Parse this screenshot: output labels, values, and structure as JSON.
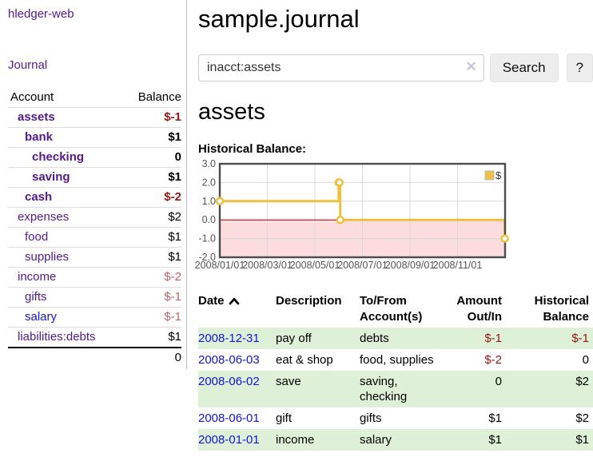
{
  "app": {
    "title": "hledger-web"
  },
  "colors": {
    "accent_purple": "#551a8b",
    "link_blue": "#1414d8",
    "negative_strong": "#9a1616",
    "negative_muted": "#bd6468",
    "stripe_green": "#dff0d8",
    "chart_text_gray": "#545454"
  },
  "sidebar": {
    "journal_link": "Journal",
    "table": {
      "headers": {
        "account": "Account",
        "balance": "Balance"
      },
      "accounts": [
        {
          "name": "assets",
          "indent": 1,
          "bold": true,
          "balance": "$-1",
          "neg": "strong"
        },
        {
          "name": "bank",
          "indent": 2,
          "bold": true,
          "balance": "$1"
        },
        {
          "name": "checking",
          "indent": 3,
          "bold": true,
          "balance": "0"
        },
        {
          "name": "saving",
          "indent": 3,
          "bold": true,
          "balance": "$1"
        },
        {
          "name": "cash",
          "indent": 2,
          "bold": true,
          "balance": "$-2",
          "neg": "strong"
        },
        {
          "name": "expenses",
          "indent": 1,
          "bold": false,
          "balance": "$2"
        },
        {
          "name": "food",
          "indent": 2,
          "bold": false,
          "balance": "$1"
        },
        {
          "name": "supplies",
          "indent": 2,
          "bold": false,
          "balance": "$1"
        },
        {
          "name": "income",
          "indent": 1,
          "bold": false,
          "balance": "$-2",
          "neg": "muted"
        },
        {
          "name": "gifts",
          "indent": 2,
          "bold": false,
          "balance": "$-1",
          "neg": "muted"
        },
        {
          "name": "salary",
          "indent": 2,
          "bold": false,
          "balance": "$-1",
          "neg": "muted",
          "link_color": "#1414d8"
        },
        {
          "name": "liabilities:debts",
          "indent": 1,
          "bold": false,
          "balance": "$1"
        }
      ],
      "total": "0"
    }
  },
  "header": {
    "title": "sample.journal"
  },
  "search": {
    "value": "inacct:assets",
    "clear_icon": "✕",
    "button": "Search",
    "help_button": "?"
  },
  "account_page": {
    "heading": "assets",
    "chart_label": "Historical Balance:"
  },
  "chart_data": {
    "type": "line",
    "step": true,
    "title": "Historical Balance",
    "series": [
      {
        "name": "$",
        "color": "#edc240",
        "points": [
          [
            "2008-01-01",
            1
          ],
          [
            "2008-06-01",
            2
          ],
          [
            "2008-06-02",
            2
          ],
          [
            "2008-06-03",
            0
          ],
          [
            "2008-12-31",
            -1
          ]
        ]
      }
    ],
    "xlim": [
      "2008-01-01",
      "2008-12-31"
    ],
    "ylim": [
      -2,
      3
    ],
    "x_tick_labels": [
      "2008/01/01",
      "2008/03/01",
      "2008/05/01",
      "2008/07/01",
      "2008/09/01",
      "2008/11/01"
    ],
    "y_tick_labels": [
      "3.0",
      "2.0",
      "1.0",
      "0.0",
      "-1.0",
      "-2.0"
    ],
    "grid": true,
    "legend_position": "top-right",
    "legend": {
      "label": "$",
      "swatch_color": "#edc240"
    },
    "negative_region_color": "#fcdcdc",
    "zero_line_color": "#8b0000",
    "gridline_color": "#d9d9d9",
    "border_color": "#4d4d4d"
  },
  "register_table": {
    "columns": [
      "Date",
      "Description",
      "To/From Account(s)",
      "Amount Out/In",
      "Historical Balance"
    ],
    "sort": {
      "column": "Date",
      "direction": "ascending"
    },
    "rows": [
      {
        "date": "2008-12-31",
        "description": "pay off",
        "accounts": "debts",
        "amount": "$-1",
        "amount_neg": true,
        "balance": "$-1",
        "balance_neg": true
      },
      {
        "date": "2008-06-03",
        "description": "eat & shop",
        "accounts": "food, supplies",
        "amount": "$-2",
        "amount_neg": true,
        "balance": "0",
        "balance_neg": false
      },
      {
        "date": "2008-06-02",
        "description": "save",
        "accounts": "saving, checking",
        "amount": "0",
        "amount_neg": false,
        "balance": "$2",
        "balance_neg": false
      },
      {
        "date": "2008-06-01",
        "description": "gift",
        "accounts": "gifts",
        "amount": "$1",
        "amount_neg": false,
        "balance": "$2",
        "balance_neg": false
      },
      {
        "date": "2008-01-01",
        "description": "income",
        "accounts": "salary",
        "amount": "$1",
        "amount_neg": false,
        "balance": "$1",
        "balance_neg": false
      }
    ]
  }
}
